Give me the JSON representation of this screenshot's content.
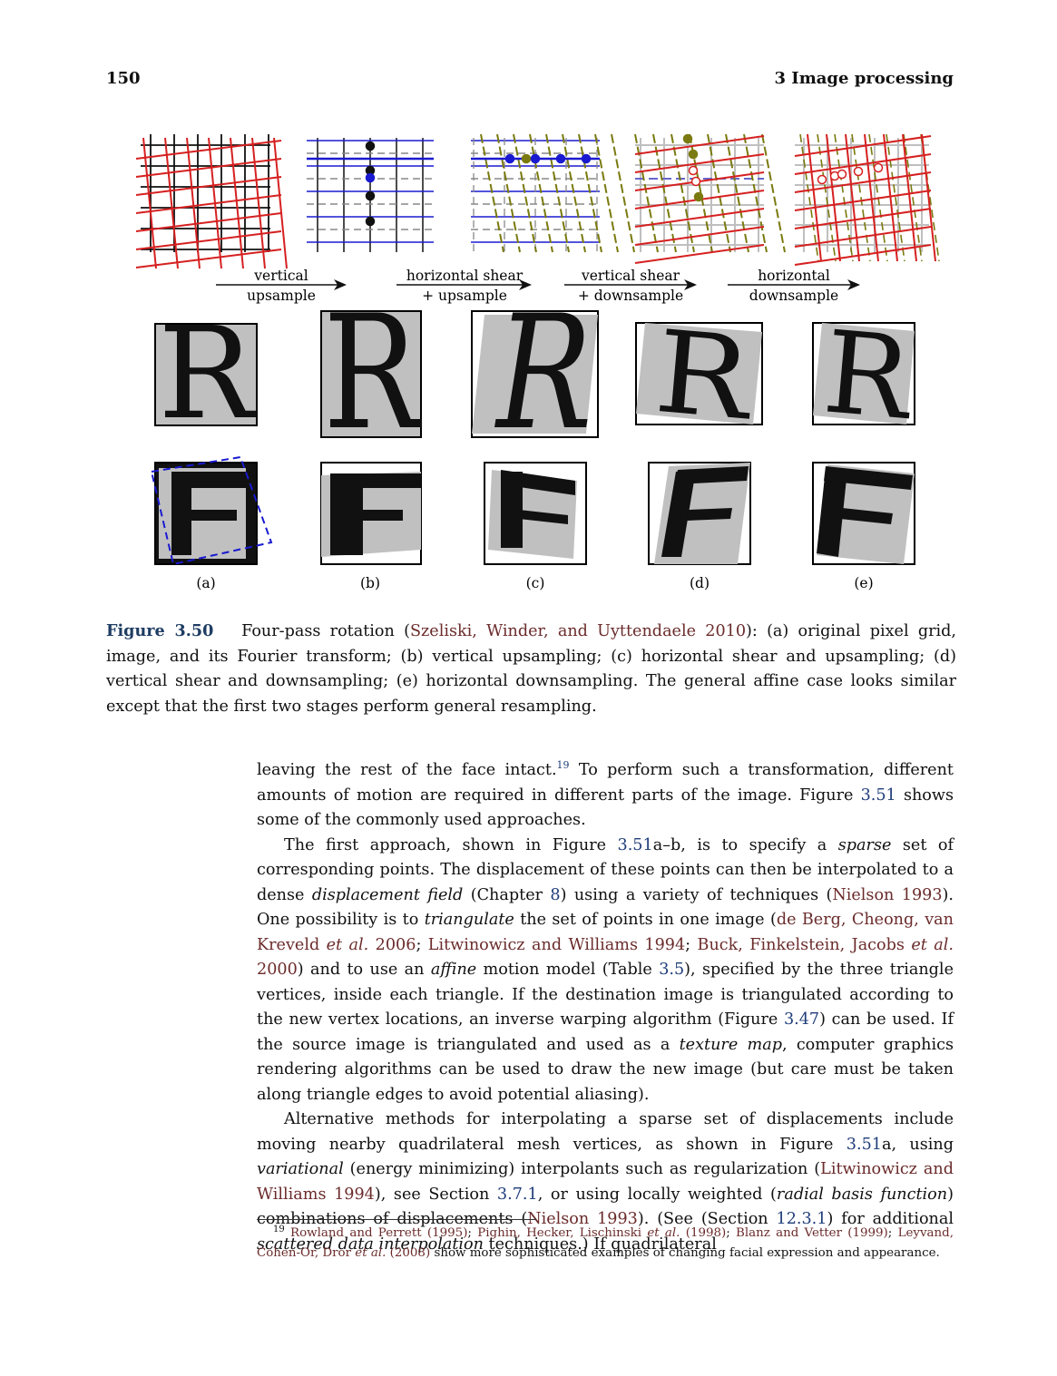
{
  "header": {
    "page_number": "150",
    "chapter_title": "3  Image processing"
  },
  "figure": {
    "arrows": [
      {
        "line1": "vertical",
        "line2": "upsample"
      },
      {
        "line1": "horizontal shear",
        "line2": "+ upsample"
      },
      {
        "line1": "vertical shear",
        "line2": "+ downsample"
      },
      {
        "line1": "horizontal",
        "line2": "downsample"
      }
    ],
    "panels": [
      "(a)",
      "(b)",
      "(c)",
      "(d)",
      "(e)"
    ],
    "letter_r": "R",
    "letter_f": "F",
    "colors": {
      "red": "#d62020",
      "blue": "#1a1ad0",
      "olive": "#7a7a10",
      "gray": "#bfbfbf"
    }
  },
  "caption": {
    "label": "Figure 3.50",
    "t1": "Four-pass rotation (",
    "cite1": "Szeliski, Winder, and Uyttendaele 2010",
    "t2": "): (a) original pixel grid, image, and its Fourier transform; (b) vertical upsampling; (c) horizontal shear and upsampling; (d) vertical shear and downsampling; (e) horizontal downsampling. The general affine case looks similar except that the first two stages perform general resampling."
  },
  "body": {
    "p1": {
      "a": "leaving the rest of the face intact.",
      "fn": "19",
      "b": " To perform such a transformation, different amounts of motion are required in different parts of the image. Figure ",
      "ref1": "3.51",
      "c": " shows some of the commonly used approaches."
    },
    "p2": {
      "a": "The first approach, shown in Figure ",
      "ref1": "3.51",
      "b": "a–b, is to specify a ",
      "em1": "sparse",
      "c": " set of corresponding points. The displacement of these points can then be interpolated to a dense ",
      "em2": "displacement field",
      "d": " (Chapter ",
      "ref2": "8",
      "e": ") using a variety of techniques (",
      "cite1": "Nielson 1993",
      "f": "). One possibility is to ",
      "em3": "triangulate",
      "g": " the set of points in one image (",
      "cite2a": "de Berg, Cheong, van Kreveld ",
      "cite2em": "et al.",
      "cite2b": " 2006",
      "h": "; ",
      "cite3": "Litwinowicz and Williams 1994",
      "i": "; ",
      "cite4a": "Buck, Finkelstein, Jacobs ",
      "cite4em": "et al.",
      "cite4b": " 2000",
      "j": ") and to use an ",
      "em4": "affine",
      "k": " motion model (Table ",
      "ref3": "3.5",
      "l": "), specified by the three triangle vertices, inside each triangle. If the destination image is triangulated according to the new vertex locations, an inverse warping algorithm (Figure ",
      "ref4": "3.47",
      "m": ") can be used. If the source image is triangulated and used as a ",
      "em5": "texture map",
      "n": ", computer graphics rendering algorithms can be used to draw the new image (but care must be taken along triangle edges to avoid potential aliasing)."
    },
    "p3": {
      "a": "Alternative methods for interpolating a sparse set of displacements include moving nearby quadrilateral mesh vertices, as shown in Figure ",
      "ref1": "3.51",
      "b": "a, using ",
      "em1": "variational",
      "c": " (energy minimizing) interpolants such as regularization (",
      "cite1": "Litwinowicz and Williams 1994",
      "d": "), see Section ",
      "ref2": "3.7.1",
      "e": ", or using locally weighted (",
      "em2": "radial basis function",
      "f": ") combinations of displacements (",
      "cite2": "Nielson 1993",
      "g": "). (See (Section ",
      "ref3": "12.3.1",
      "h": ") for additional ",
      "em3": "scattered data interpolation",
      "i": " techniques.) If quadrilateral"
    }
  },
  "footnote": {
    "num": "19",
    "c1": "Rowland and Perrett (1995)",
    "s1": "; ",
    "c2a": "Pighin, Hecker, Lischinski ",
    "c2em": "et al.",
    "c2b": " (1998)",
    "s2": "; ",
    "c3": "Blanz and Vetter (1999)",
    "s3": "; ",
    "c4a": "Leyvand, Cohen-Or, Dror ",
    "c4em": "et al.",
    "c4b": " (2008)",
    "s4": " show more sophisticated examples of changing facial expression and appearance."
  }
}
